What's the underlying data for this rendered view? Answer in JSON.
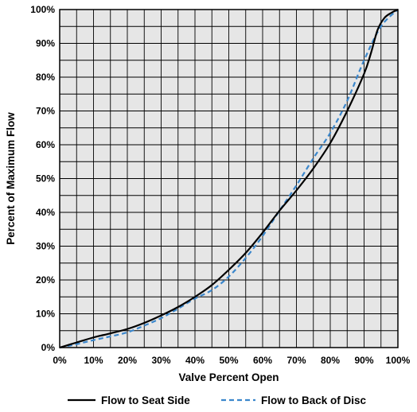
{
  "chart_data": {
    "type": "line",
    "title": "",
    "xlabel": "Valve Percent Open",
    "ylabel": "Percent of Maximum Flow",
    "xlim": [
      0,
      100
    ],
    "ylim": [
      0,
      100
    ],
    "grid": true,
    "grid_background": "#e6e6e6",
    "x_ticks": [
      0,
      10,
      20,
      30,
      40,
      50,
      60,
      70,
      80,
      90,
      100
    ],
    "x_tick_labels": [
      "0%",
      "10%",
      "20%",
      "30%",
      "40%",
      "50%",
      "60%",
      "70%",
      "80%",
      "90%",
      "100%"
    ],
    "y_ticks": [
      0,
      10,
      20,
      30,
      40,
      50,
      60,
      70,
      80,
      90,
      100
    ],
    "y_tick_labels": [
      "0%",
      "10%",
      "20%",
      "30%",
      "40%",
      "50%",
      "60%",
      "70%",
      "80%",
      "90%",
      "100%"
    ],
    "legend_position": "bottom",
    "series": [
      {
        "name": "Flow to Seat Side",
        "color": "#000000",
        "dash": "solid",
        "x": [
          0,
          5,
          10,
          15,
          20,
          25,
          30,
          35,
          40,
          45,
          50,
          55,
          60,
          65,
          70,
          75,
          80,
          85,
          90,
          92,
          94,
          96,
          98,
          100
        ],
        "y": [
          0,
          1.5,
          3,
          4.2,
          5.5,
          7.3,
          9.5,
          12,
          15,
          18.5,
          23,
          28,
          34,
          40.5,
          46.5,
          53,
          60.5,
          70,
          81,
          87,
          94,
          97.5,
          99,
          100
        ]
      },
      {
        "name": "Flow to Back of Disc",
        "color": "#3b87cc",
        "dash": "dashed",
        "x": [
          0,
          5,
          10,
          15,
          20,
          25,
          30,
          35,
          40,
          45,
          50,
          55,
          60,
          65,
          70,
          75,
          80,
          85,
          90,
          95,
          100
        ],
        "y": [
          0,
          1,
          2.2,
          3.3,
          4.5,
          6.5,
          8.7,
          11.5,
          14.5,
          17,
          21,
          26.5,
          33,
          40.5,
          48,
          56,
          63.5,
          73,
          85,
          95,
          100
        ]
      }
    ]
  }
}
